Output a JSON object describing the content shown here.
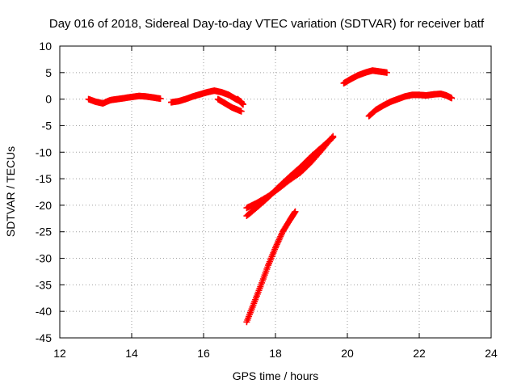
{
  "chart_data": {
    "type": "scatter",
    "title": "Day 016 of 2018, Sidereal Day-to-day VTEC variation (SDTVAR) for receiver batf",
    "xlabel": "GPS time / hours",
    "ylabel": "SDTVAR / TECUs",
    "xlim": [
      12,
      24
    ],
    "ylim": [
      -45,
      10
    ],
    "xticks": [
      12,
      14,
      16,
      18,
      20,
      22,
      24
    ],
    "yticks": [
      10,
      5,
      0,
      -5,
      -10,
      -15,
      -20,
      -25,
      -30,
      -35,
      -40,
      -45
    ],
    "grid": true,
    "grid_style": "dotted",
    "marker_color": "#ff0000",
    "marker": "plus",
    "series": [
      {
        "points": [
          [
            12.8,
            0.0
          ],
          [
            13.0,
            -0.5
          ],
          [
            13.2,
            -0.8
          ],
          [
            13.4,
            -0.2
          ],
          [
            13.6,
            0.0
          ],
          [
            13.8,
            0.2
          ],
          [
            14.0,
            0.4
          ],
          [
            14.2,
            0.6
          ],
          [
            14.4,
            0.5
          ],
          [
            14.6,
            0.3
          ],
          [
            14.8,
            0.1
          ]
        ]
      },
      {
        "points": [
          [
            15.1,
            -0.6
          ],
          [
            15.3,
            -0.4
          ],
          [
            15.5,
            0.0
          ],
          [
            15.7,
            0.5
          ],
          [
            15.9,
            0.9
          ],
          [
            16.1,
            1.3
          ],
          [
            16.3,
            1.6
          ],
          [
            16.5,
            1.3
          ],
          [
            16.7,
            0.8
          ],
          [
            16.9,
            0.0
          ],
          [
            17.05,
            -0.5
          ]
        ]
      },
      {
        "points": [
          [
            16.4,
            0.0
          ],
          [
            16.6,
            -0.8
          ],
          [
            16.8,
            -1.6
          ],
          [
            17.05,
            -2.3
          ]
        ]
      },
      {
        "points": [
          [
            16.95,
            0.0
          ],
          [
            17.1,
            -1.0
          ]
        ]
      },
      {
        "points": [
          [
            17.2,
            -20.5
          ],
          [
            17.5,
            -19.5
          ],
          [
            17.8,
            -18.3
          ],
          [
            18.1,
            -16.8
          ],
          [
            18.4,
            -15.2
          ],
          [
            18.7,
            -13.8
          ],
          [
            19.0,
            -11.8
          ],
          [
            19.3,
            -9.5
          ],
          [
            19.6,
            -7.0
          ]
        ]
      },
      {
        "points": [
          [
            17.2,
            -22.0
          ],
          [
            17.5,
            -20.3
          ],
          [
            17.8,
            -18.5
          ],
          [
            18.1,
            -16.5
          ],
          [
            18.4,
            -14.6
          ],
          [
            18.7,
            -12.8
          ],
          [
            19.0,
            -10.8
          ],
          [
            19.3,
            -9.0
          ],
          [
            19.6,
            -7.2
          ]
        ]
      },
      {
        "points": [
          [
            17.2,
            -42.0
          ],
          [
            17.4,
            -38.5
          ],
          [
            17.6,
            -35.0
          ],
          [
            17.8,
            -31.3
          ],
          [
            18.0,
            -28.0
          ],
          [
            18.2,
            -25.0
          ],
          [
            18.4,
            -22.8
          ],
          [
            18.55,
            -21.2
          ]
        ]
      },
      {
        "points": [
          [
            19.9,
            3.0
          ],
          [
            20.1,
            3.8
          ],
          [
            20.3,
            4.5
          ],
          [
            20.5,
            5.0
          ],
          [
            20.7,
            5.4
          ],
          [
            20.9,
            5.2
          ],
          [
            21.1,
            5.0
          ]
        ]
      },
      {
        "points": [
          [
            20.6,
            -3.2
          ],
          [
            20.8,
            -2.0
          ],
          [
            21.0,
            -1.2
          ],
          [
            21.2,
            -0.5
          ],
          [
            21.4,
            0.0
          ],
          [
            21.6,
            0.5
          ],
          [
            21.8,
            0.8
          ],
          [
            22.0,
            0.8
          ],
          [
            22.2,
            0.7
          ],
          [
            22.4,
            0.9
          ],
          [
            22.6,
            1.0
          ],
          [
            22.75,
            0.7
          ],
          [
            22.9,
            0.2
          ]
        ]
      }
    ]
  }
}
